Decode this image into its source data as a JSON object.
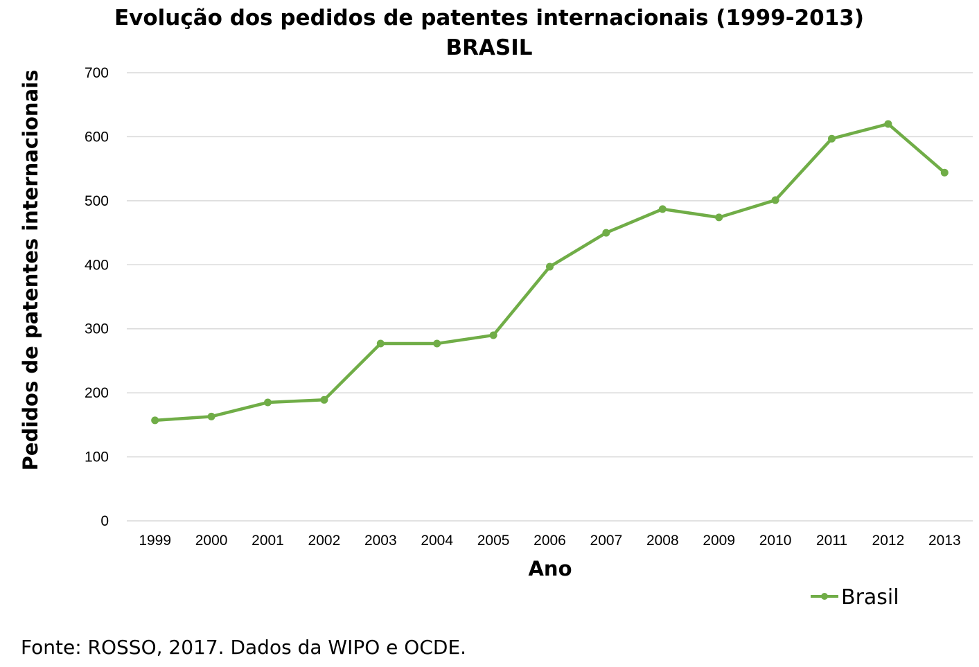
{
  "chart_data": {
    "type": "line",
    "title": "Evolução dos pedidos de patentes internacionais (1999-2013)",
    "subtitle": "BRASIL",
    "xlabel": "Ano",
    "ylabel": "Pedidos de patentes internacionais",
    "categories": [
      "1999",
      "2000",
      "2001",
      "2002",
      "2003",
      "2004",
      "2005",
      "2006",
      "2007",
      "2008",
      "2009",
      "2010",
      "2011",
      "2012",
      "2013"
    ],
    "series": [
      {
        "name": "Brasil",
        "color": "#70AD47",
        "values": [
          157,
          163,
          185,
          189,
          277,
          277,
          290,
          397,
          450,
          487,
          474,
          501,
          597,
          620,
          544
        ]
      }
    ],
    "ylim": [
      0,
      700
    ],
    "yticks": [
      "0",
      "100",
      "200",
      "300",
      "400",
      "500",
      "600",
      "700"
    ],
    "grid": true,
    "legend": "bottom-right"
  },
  "source": "Fonte: ROSSO, 2017. Dados da WIPO e OCDE."
}
